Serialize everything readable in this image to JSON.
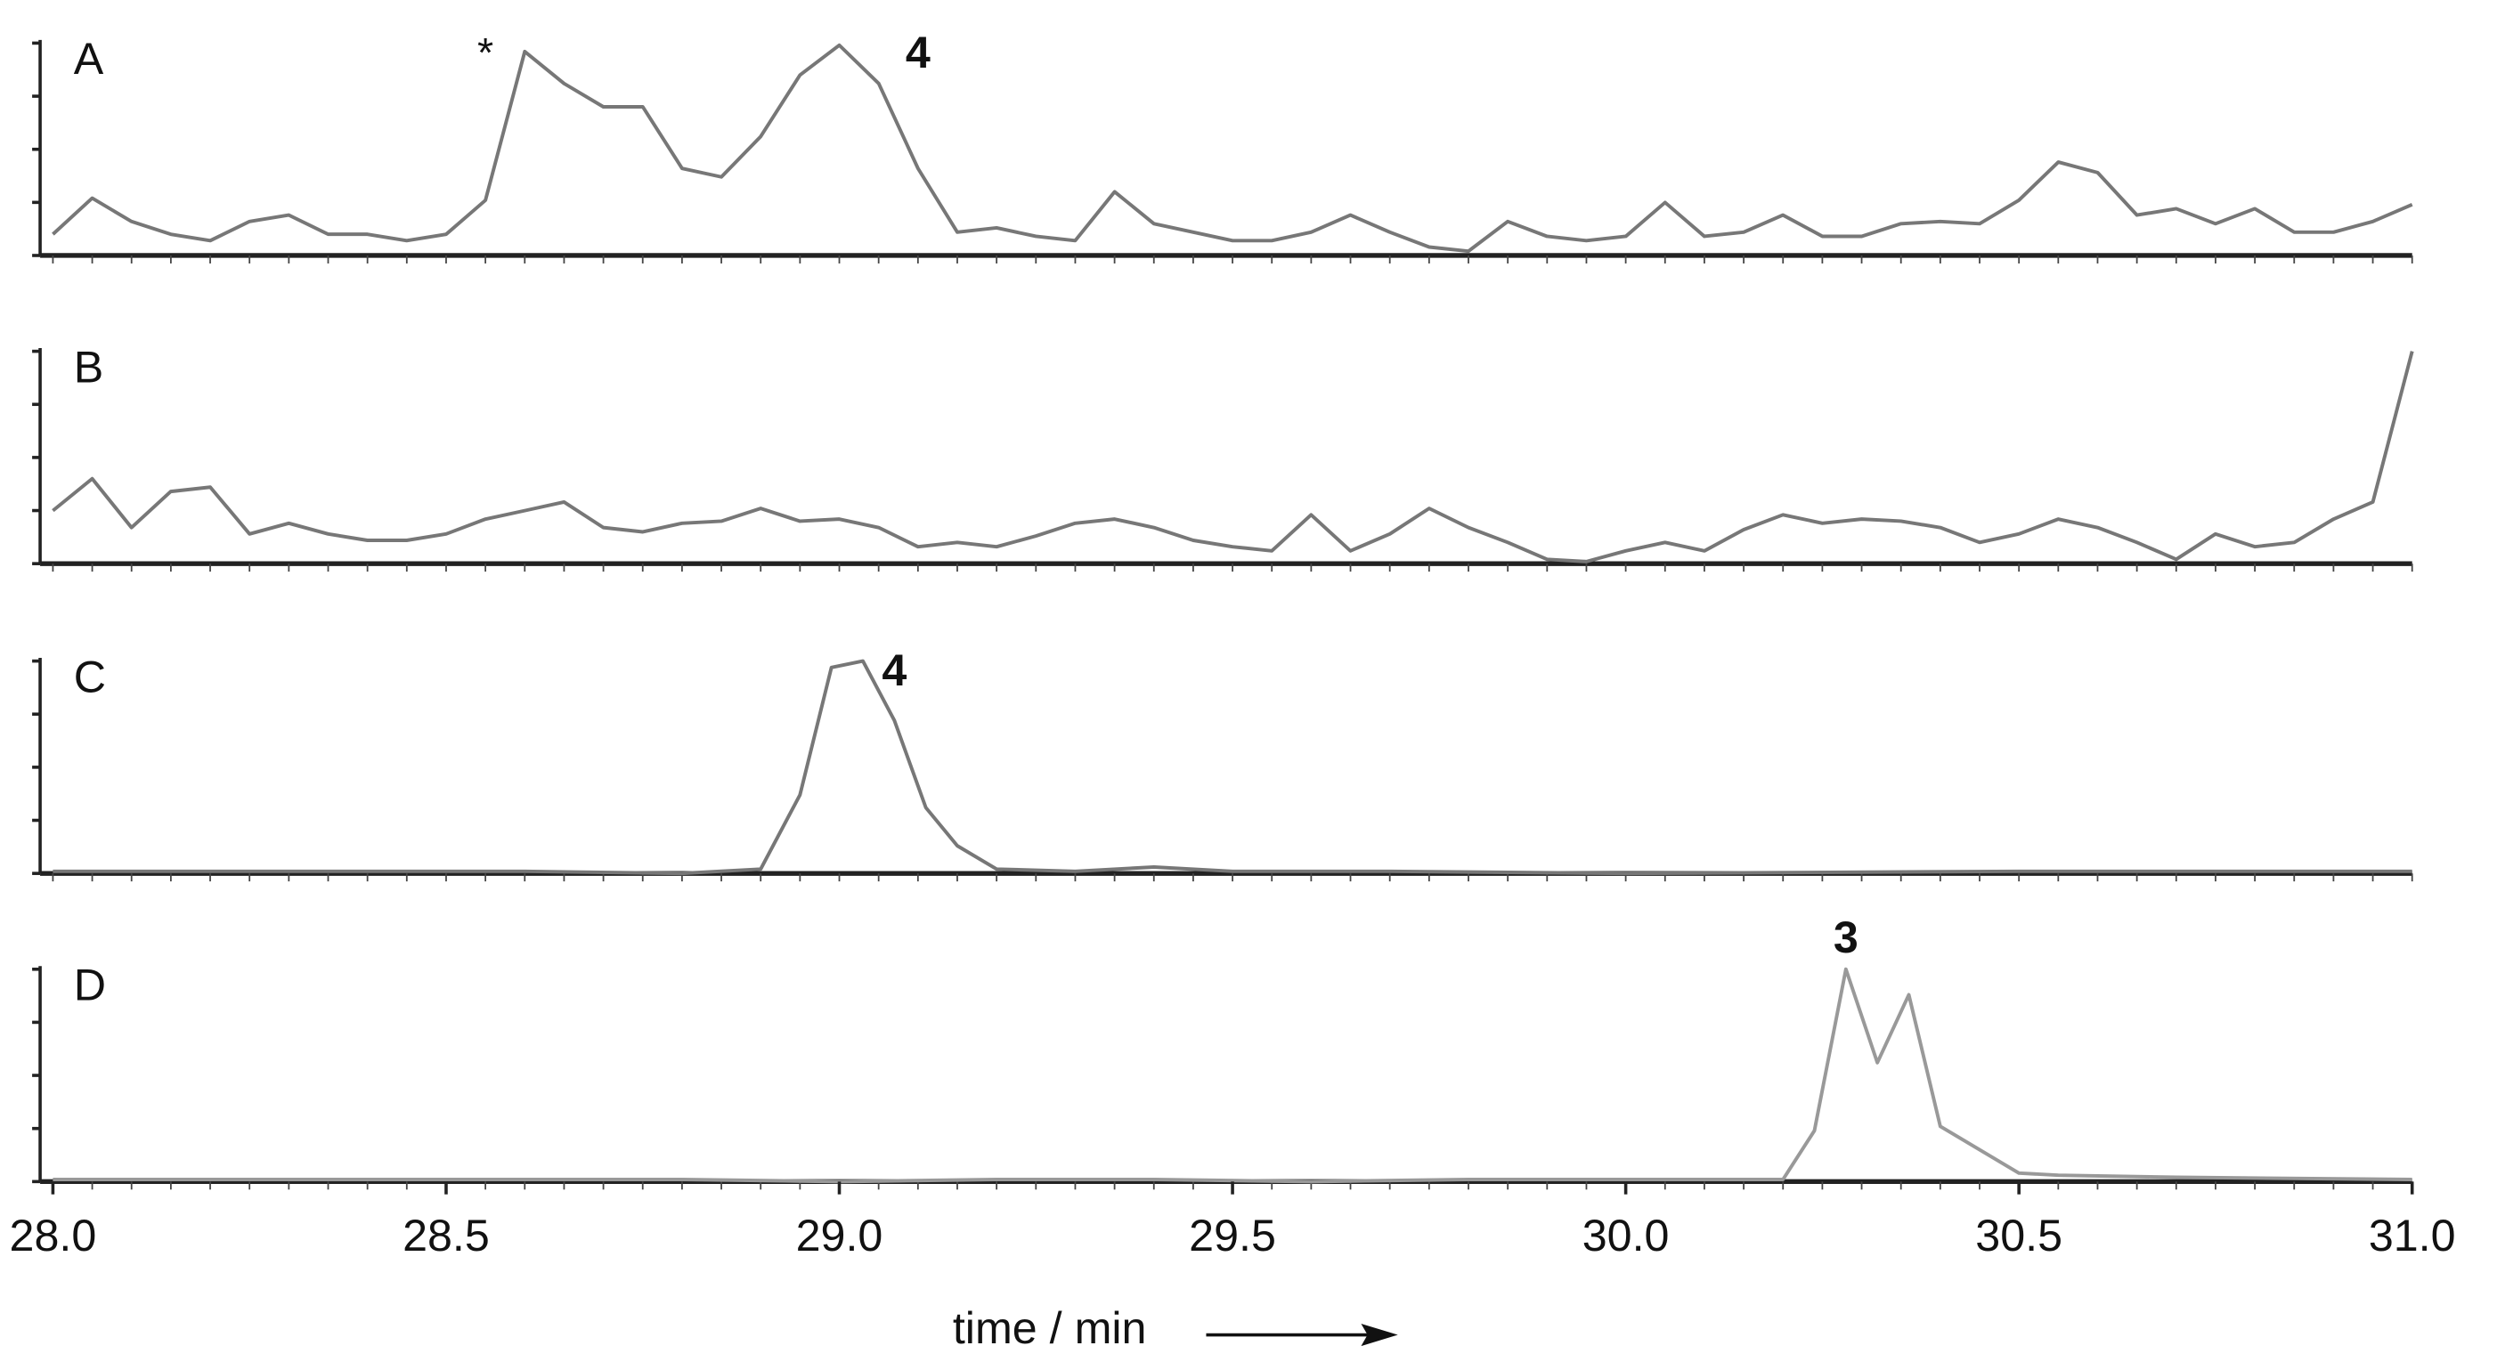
{
  "chart_data": [
    {
      "type": "line",
      "label": "A",
      "color": "#777777",
      "xlim": [
        28.0,
        31.0
      ],
      "ylim": [
        0,
        100
      ],
      "yticks": [
        0,
        25,
        50,
        75,
        100
      ],
      "annotations": [
        {
          "text": "*",
          "x": 28.55,
          "bold": false
        },
        {
          "text": "4",
          "x": 29.1,
          "bold": true
        }
      ],
      "x": [
        28.0,
        28.05,
        28.1,
        28.15,
        28.2,
        28.25,
        28.3,
        28.35,
        28.4,
        28.45,
        28.5,
        28.55,
        28.6,
        28.65,
        28.7,
        28.75,
        28.8,
        28.85,
        28.9,
        28.95,
        29.0,
        29.05,
        29.1,
        29.15,
        29.2,
        29.25,
        29.3,
        29.35,
        29.4,
        29.45,
        29.5,
        29.55,
        29.6,
        29.65,
        29.7,
        29.75,
        29.8,
        29.85,
        29.9,
        29.95,
        30.0,
        30.05,
        30.1,
        30.15,
        30.2,
        30.25,
        30.3,
        30.35,
        30.4,
        30.45,
        30.5,
        30.55,
        30.6,
        30.65,
        30.7,
        30.75,
        30.8,
        30.85,
        30.9,
        30.95,
        31.0
      ],
      "values": [
        10,
        27,
        16,
        10,
        7,
        16,
        19,
        10,
        10,
        7,
        10,
        26,
        96,
        81,
        70,
        70,
        41,
        37,
        56,
        85,
        99,
        81,
        41,
        11,
        13,
        9,
        7,
        30,
        15,
        11,
        7,
        7,
        11,
        19,
        11,
        4,
        2,
        16,
        9,
        7,
        9,
        25,
        9,
        11,
        19,
        9,
        9,
        15,
        16,
        15,
        26,
        44,
        39,
        19,
        22,
        15,
        22,
        11,
        11,
        16,
        24
      ]
    },
    {
      "type": "line",
      "label": "B",
      "color": "#777777",
      "xlim": [
        28.0,
        31.0
      ],
      "ylim": [
        0,
        100
      ],
      "yticks": [
        0,
        25,
        50,
        75,
        100
      ],
      "x": [
        28.0,
        28.05,
        28.1,
        28.15,
        28.2,
        28.25,
        28.3,
        28.35,
        28.4,
        28.45,
        28.5,
        28.55,
        28.6,
        28.65,
        28.7,
        28.75,
        28.8,
        28.85,
        28.9,
        28.95,
        29.0,
        29.05,
        29.1,
        29.15,
        29.2,
        29.25,
        29.3,
        29.35,
        29.4,
        29.45,
        29.5,
        29.55,
        29.6,
        29.65,
        29.7,
        29.75,
        29.8,
        29.85,
        29.9,
        29.95,
        30.0,
        30.05,
        30.1,
        30.15,
        30.2,
        30.25,
        30.3,
        30.35,
        30.4,
        30.45,
        30.5,
        30.55,
        30.6,
        30.65,
        30.7,
        30.75,
        30.8,
        30.85,
        30.9,
        30.95,
        31.0
      ],
      "values": [
        25,
        40,
        17,
        34,
        36,
        14,
        19,
        14,
        11,
        11,
        14,
        21,
        25,
        29,
        17,
        15,
        19,
        20,
        26,
        20,
        21,
        17,
        8,
        10,
        8,
        13,
        19,
        21,
        17,
        11,
        8,
        6,
        23,
        6,
        14,
        26,
        17,
        10,
        2,
        1,
        6,
        10,
        6,
        16,
        23,
        19,
        21,
        20,
        17,
        10,
        14,
        21,
        17,
        10,
        2,
        14,
        8,
        10,
        21,
        29,
        100
      ]
    },
    {
      "type": "line",
      "label": "C",
      "color": "#777777",
      "xlim": [
        28.0,
        31.0
      ],
      "ylim": [
        0,
        100
      ],
      "yticks": [
        0,
        25,
        50,
        75,
        100
      ],
      "annotations": [
        {
          "text": "4",
          "x": 29.07,
          "bold": true
        }
      ],
      "x": [
        28.0,
        28.2,
        28.4,
        28.6,
        28.8,
        28.9,
        28.95,
        28.99,
        29.03,
        29.07,
        29.11,
        29.15,
        29.2,
        29.3,
        29.4,
        29.5,
        29.7,
        30.0,
        30.5,
        31.0
      ],
      "values": [
        1,
        1,
        1,
        1,
        0,
        2,
        37,
        97,
        100,
        72,
        31,
        13,
        2,
        1,
        3,
        1,
        1,
        0,
        1,
        1
      ]
    },
    {
      "type": "line",
      "label": "D",
      "color": "#999999",
      "xlim": [
        28.0,
        31.0
      ],
      "ylim": [
        0,
        100
      ],
      "yticks": [
        0,
        25,
        50,
        75,
        100
      ],
      "annotations": [
        {
          "text": "3",
          "x": 30.28,
          "bold": true
        }
      ],
      "x": [
        28.0,
        28.2,
        28.4,
        28.6,
        28.8,
        29.0,
        29.2,
        29.4,
        29.6,
        29.8,
        30.0,
        30.2,
        30.24,
        30.28,
        30.32,
        30.36,
        30.4,
        30.5,
        30.55,
        30.7,
        31.0
      ],
      "values": [
        1,
        1,
        1,
        1,
        1,
        0,
        1,
        1,
        0,
        1,
        1,
        1,
        24,
        100,
        56,
        88,
        26,
        4,
        3,
        2,
        1
      ],
      "xticks": [
        {
          "value": 28.0,
          "label": "28.0"
        },
        {
          "value": 28.5,
          "label": "28.5"
        },
        {
          "value": 29.0,
          "label": "29.0"
        },
        {
          "value": 29.5,
          "label": "29.5"
        },
        {
          "value": 30.0,
          "label": "30.0"
        },
        {
          "value": 30.5,
          "label": "30.5"
        },
        {
          "value": 31.0,
          "label": "31.0"
        }
      ],
      "xlabel": "time / min"
    }
  ]
}
